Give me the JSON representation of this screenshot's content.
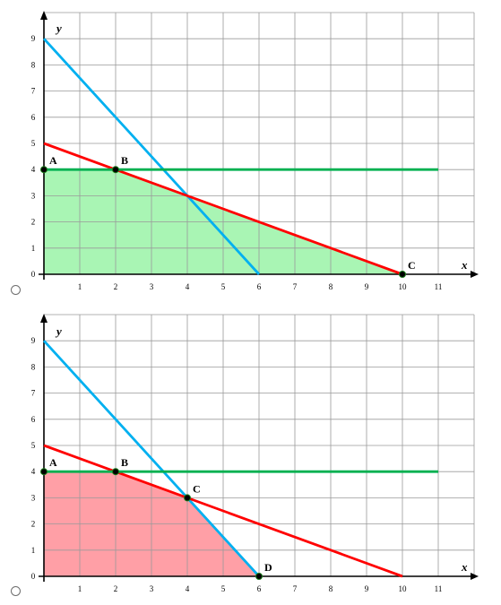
{
  "options": [
    {
      "chart_data": {
        "type": "line",
        "title": "",
        "xlabel": "x",
        "ylabel": "y",
        "xlim": [
          0,
          11
        ],
        "ylim": [
          0,
          9
        ],
        "x_ticks": [
          1,
          2,
          3,
          4,
          5,
          6,
          7,
          8,
          9,
          10,
          11
        ],
        "y_ticks": [
          0,
          1,
          2,
          3,
          4,
          5,
          6,
          7,
          8,
          9
        ],
        "grid": true,
        "series": [
          {
            "color": "#00b0f0",
            "points": [
              [
                0,
                9
              ],
              [
                6,
                0
              ]
            ]
          },
          {
            "color": "#ff0000",
            "points": [
              [
                0,
                5
              ],
              [
                10,
                0
              ]
            ]
          },
          {
            "color": "#00b050",
            "points": [
              [
                0,
                4
              ],
              [
                11,
                4
              ]
            ]
          }
        ],
        "region": {
          "color": "#a9f5b4",
          "points": [
            [
              0,
              0
            ],
            [
              0,
              4
            ],
            [
              2,
              4
            ],
            [
              10,
              0
            ]
          ]
        },
        "labeled_points": [
          {
            "label": "A",
            "x": 0,
            "y": 4
          },
          {
            "label": "B",
            "x": 2,
            "y": 4
          },
          {
            "label": "C",
            "x": 10,
            "y": 0
          }
        ]
      }
    },
    {
      "chart_data": {
        "type": "line",
        "title": "",
        "xlabel": "x",
        "ylabel": "y",
        "xlim": [
          0,
          11
        ],
        "ylim": [
          0,
          9
        ],
        "x_ticks": [
          1,
          2,
          3,
          4,
          5,
          6,
          7,
          8,
          9,
          10,
          11
        ],
        "y_ticks": [
          0,
          1,
          2,
          3,
          4,
          5,
          6,
          7,
          8,
          9
        ],
        "grid": true,
        "series": [
          {
            "color": "#00b0f0",
            "points": [
              [
                0,
                9
              ],
              [
                6,
                0
              ]
            ]
          },
          {
            "color": "#ff0000",
            "points": [
              [
                0,
                5
              ],
              [
                10,
                0
              ]
            ]
          },
          {
            "color": "#00b050",
            "points": [
              [
                0,
                4
              ],
              [
                11,
                4
              ]
            ]
          }
        ],
        "region": {
          "color": "#ff9fa6",
          "points": [
            [
              0,
              0
            ],
            [
              0,
              4
            ],
            [
              2,
              4
            ],
            [
              4,
              3
            ],
            [
              6,
              0
            ]
          ]
        },
        "labeled_points": [
          {
            "label": "A",
            "x": 0,
            "y": 4
          },
          {
            "label": "B",
            "x": 2,
            "y": 4
          },
          {
            "label": "C",
            "x": 4,
            "y": 3
          },
          {
            "label": "D",
            "x": 6,
            "y": 0
          }
        ]
      }
    }
  ]
}
